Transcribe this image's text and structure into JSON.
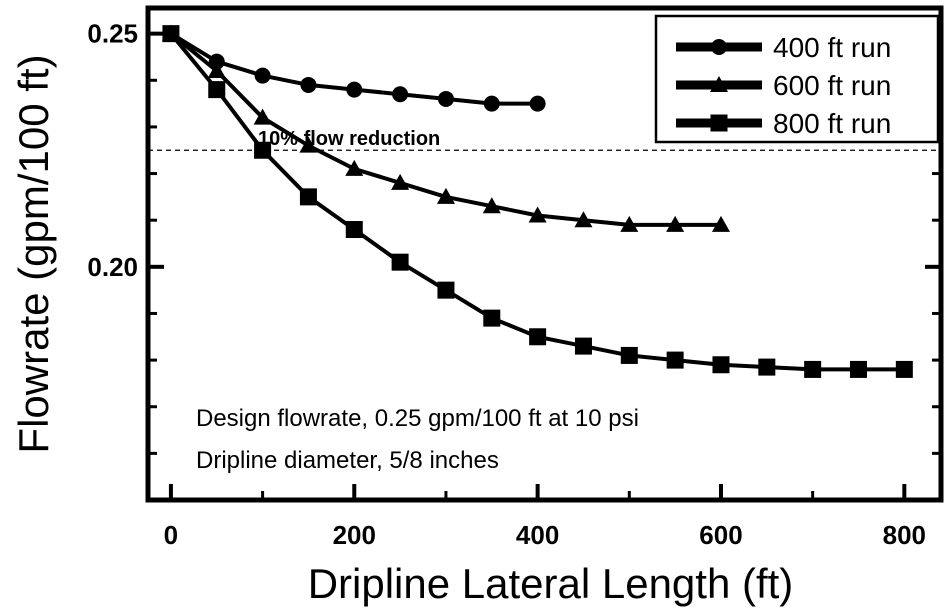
{
  "chart_data": {
    "type": "line",
    "title": "",
    "xlabel": "Dripline Lateral Length (ft)",
    "ylabel": "Flowrate (gpm/100 ft)",
    "xlim": [
      -25,
      840
    ],
    "ylim": [
      0.15,
      0.2555
    ],
    "x_ticks": [
      0,
      200,
      400,
      600,
      800
    ],
    "x_tick_labels": [
      "0",
      "200",
      "400",
      "600",
      "800"
    ],
    "y_ticks": [
      0.2,
      0.25
    ],
    "y_tick_labels": [
      "0.20",
      "0.25"
    ],
    "y_minor_ticks": [
      0.16,
      0.17,
      0.18,
      0.19,
      0.21,
      0.22,
      0.23,
      0.24
    ],
    "grid": false,
    "legend_position": "top-right",
    "reference_line": {
      "y": 0.225,
      "label": "10% flow reduction",
      "style": "dashed"
    },
    "annotations": [
      "Design flowrate, 0.25 gpm/100 ft at 10 psi",
      "Dripline diameter, 5/8 inches"
    ],
    "series": [
      {
        "name": "400 ft run",
        "marker": "circle",
        "x": [
          0,
          50,
          100,
          150,
          200,
          250,
          300,
          350,
          400
        ],
        "y": [
          0.25,
          0.244,
          0.241,
          0.239,
          0.238,
          0.237,
          0.236,
          0.235,
          0.235
        ]
      },
      {
        "name": "600 ft run",
        "marker": "triangle",
        "x": [
          0,
          50,
          100,
          150,
          200,
          250,
          300,
          350,
          400,
          450,
          500,
          550,
          600
        ],
        "y": [
          0.25,
          0.242,
          0.232,
          0.226,
          0.221,
          0.218,
          0.215,
          0.213,
          0.211,
          0.21,
          0.209,
          0.209,
          0.209
        ]
      },
      {
        "name": "800 ft run",
        "marker": "square",
        "x": [
          0,
          50,
          100,
          150,
          200,
          250,
          300,
          350,
          400,
          450,
          500,
          550,
          600,
          650,
          700,
          750,
          800
        ],
        "y": [
          0.25,
          0.238,
          0.225,
          0.215,
          0.208,
          0.201,
          0.195,
          0.189,
          0.185,
          0.183,
          0.181,
          0.18,
          0.179,
          0.1785,
          0.178,
          0.178,
          0.178
        ]
      }
    ]
  }
}
